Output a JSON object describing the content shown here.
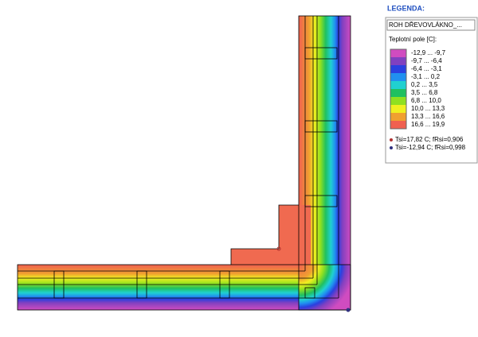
{
  "legend": {
    "heading": "LEGENDA:",
    "model": "ROH DŘEVOVLÁKNO_...",
    "field_label": "Teplotní pole [C]:",
    "ranges": [
      "-12,9 ... -9,7",
      "-9,7 ... -6,4",
      "-6,4 ... -3,1",
      "-3,1 ... 0,2",
      "0,2 ... 3,5",
      "3,5 ... 6,8",
      "6,8 ... 10,0",
      "10,0 ... 13,3",
      "13,3 ... 16,6",
      "16,6 ... 19,9"
    ],
    "colors": [
      "#d04cc0",
      "#8040c0",
      "#2a40e0",
      "#2090f0",
      "#20d0d0",
      "#20c060",
      "#90e020",
      "#f0f020",
      "#f0a030",
      "#f06050"
    ],
    "points": [
      {
        "label": "Tsi=17,82 C; fRsi=0,906",
        "color": "#b03030"
      },
      {
        "label": "Tsi=-12,94 C; fRsi=0,998",
        "color": "#303080"
      }
    ]
  }
}
